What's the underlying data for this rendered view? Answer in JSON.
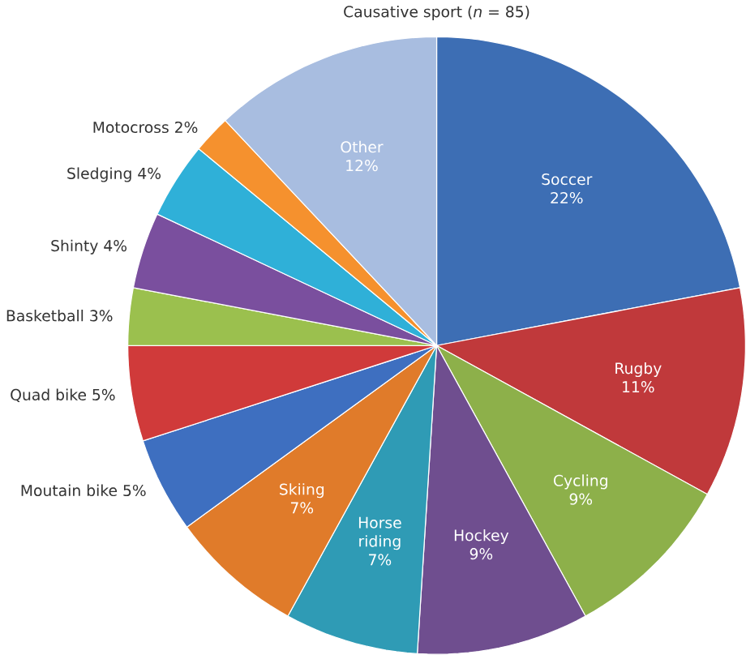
{
  "chart_data": {
    "type": "pie",
    "title": "Causative sport (*n* = 85)",
    "categories": [
      "Soccer",
      "Rugby",
      "Cycling",
      "Hockey",
      "Horse riding",
      "Skiing",
      "Moutain bike",
      "Quad bike",
      "Basketball",
      "Shinty",
      "Sledging",
      "Motocross",
      "Other"
    ],
    "values": [
      22,
      11,
      9,
      9,
      7,
      7,
      5,
      5,
      3,
      4,
      4,
      2,
      12
    ],
    "value_labels": [
      "22%",
      "11%",
      "9%",
      "9%",
      "7%",
      "7%",
      "5%",
      "5%",
      "3%",
      "4%",
      "4%",
      "2%",
      "12%"
    ],
    "colors": [
      "#3d6eb4",
      "#c0393b",
      "#8db04a",
      "#6f4e8f",
      "#2f9bb5",
      "#e07b2a",
      "#3e6fc0",
      "#d03a3a",
      "#9bc04e",
      "#7a4f9e",
      "#2fb0d8",
      "#f5912e",
      "#a8bde0"
    ]
  }
}
